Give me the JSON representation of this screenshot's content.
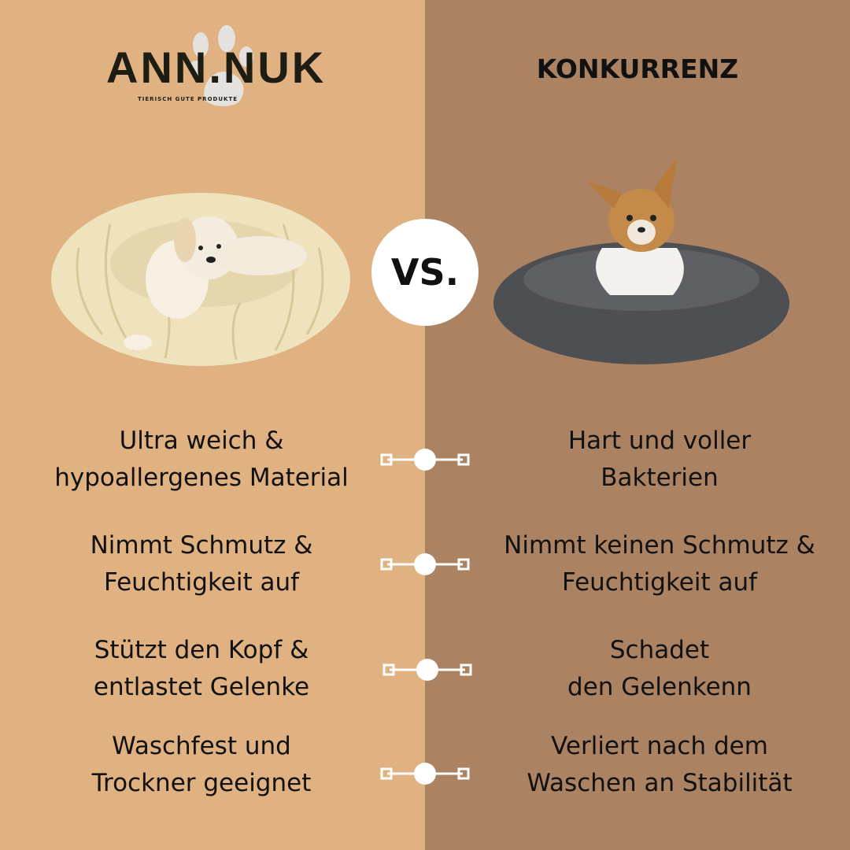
{
  "colors": {
    "left_bg": "#e0b181",
    "right_bg": "#ab8262",
    "connector": "#ffffff"
  },
  "logo": {
    "name": "ANN.NUK",
    "tagline": "TIERISCH GUTE PRODUKTE",
    "icon": "paw-print-icon"
  },
  "competitor_heading": "KONKURRENZ",
  "vs_label": "VS.",
  "features": [
    {
      "left": "Ultra weich & hypoallergenes Material",
      "right": "Hart und voller Bakterien"
    },
    {
      "left": "Nimmt Schmutz & Feuchtigkeit auf",
      "right": "Nimmt keinen Schmutz & Feuchtigkeit auf"
    },
    {
      "left": "Stützt den Kopf & entlastet Gelenke",
      "right": "Schadet den Gelenkenn"
    },
    {
      "left": "Waschfest und Trockner geeignet",
      "right": "Verliert nach dem Waschen an Stabilität"
    }
  ],
  "features_lines": [
    {
      "left": [
        "Ultra weich &",
        "hypoallergenes Material"
      ],
      "right": [
        "Hart und voller",
        "Bakterien"
      ]
    },
    {
      "left": [
        "Nimmt Schmutz &",
        "Feuchtigkeit auf"
      ],
      "right": [
        "Nimmt keinen Schmutz &",
        "Feuchtigkeit auf"
      ]
    },
    {
      "left": [
        "Stützt den Kopf &",
        "entlastet Gelenke"
      ],
      "right": [
        "Schadet",
        "den Gelenkenn"
      ]
    },
    {
      "left": [
        "Waschfest und",
        "Trockner geeignet"
      ],
      "right": [
        "Verliert nach dem",
        "Waschen an Stabilität"
      ]
    }
  ]
}
